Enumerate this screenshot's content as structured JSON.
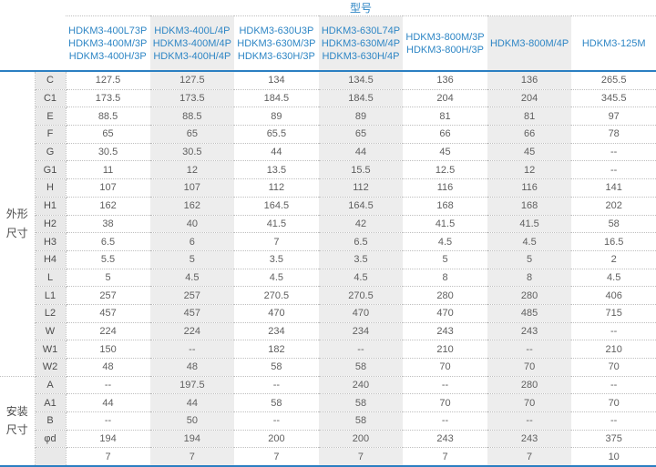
{
  "colors": {
    "accent_text": "#2e86c5",
    "accent_line": "#2b7fc2",
    "stripe_gray": "#ededed",
    "label_bg": "#e9e9e9"
  },
  "header": {
    "model_label": "型号",
    "columns": [
      {
        "lines": [
          "HDKM3-400L73P",
          "HDKM3-400M/3P",
          "HDKM3-400H/3P"
        ]
      },
      {
        "lines": [
          "HDKM3-400L/4P",
          "HDKM3-400M/4P",
          "HDKM3-400H/4P"
        ]
      },
      {
        "lines": [
          "HDKM3-630U3P",
          "HDKM3-630M/3P",
          "HDKM3-630H/3P"
        ]
      },
      {
        "lines": [
          "HDKM3-630L74P",
          "HDKM3-630M/4P",
          "HDKM3-630H/4P"
        ]
      },
      {
        "lines": [
          "HDKM3-800M/3P",
          "HDKM3-800H/3P"
        ]
      },
      {
        "lines": [
          "HDKM3-800M/4P"
        ]
      },
      {
        "lines": [
          "HDKM3-125M"
        ]
      }
    ]
  },
  "groups": [
    {
      "label": "外形尺寸",
      "rows": [
        {
          "label": "C",
          "values": [
            "127.5",
            "127.5",
            "134",
            "134.5",
            "136",
            "136",
            "265.5"
          ]
        },
        {
          "label": "C1",
          "values": [
            "173.5",
            "173.5",
            "184.5",
            "184.5",
            "204",
            "204",
            "345.5"
          ]
        },
        {
          "label": "E",
          "values": [
            "88.5",
            "88.5",
            "89",
            "89",
            "81",
            "81",
            "97"
          ]
        },
        {
          "label": "F",
          "values": [
            "65",
            "65",
            "65.5",
            "65",
            "66",
            "66",
            "78"
          ]
        },
        {
          "label": "G",
          "values": [
            "30.5",
            "30.5",
            "44",
            "44",
            "45",
            "45",
            "--"
          ]
        },
        {
          "label": "G1",
          "values": [
            "11",
            "12",
            "13.5",
            "15.5",
            "12.5",
            "12",
            "--"
          ]
        },
        {
          "label": "H",
          "values": [
            "107",
            "107",
            "112",
            "112",
            "116",
            "116",
            "141"
          ]
        },
        {
          "label": "H1",
          "values": [
            "162",
            "162",
            "164.5",
            "164.5",
            "168",
            "168",
            "202"
          ]
        },
        {
          "label": "H2",
          "values": [
            "38",
            "40",
            "41.5",
            "42",
            "41.5",
            "41.5",
            "58"
          ]
        },
        {
          "label": "H3",
          "values": [
            "6.5",
            "6",
            "7",
            "6.5",
            "4.5",
            "4.5",
            "16.5"
          ]
        },
        {
          "label": "H4",
          "values": [
            "5.5",
            "5",
            "3.5",
            "3.5",
            "5",
            "5",
            "2"
          ]
        },
        {
          "label": "L",
          "values": [
            "5",
            "4.5",
            "4.5",
            "4.5",
            "8",
            "8",
            "4.5"
          ]
        },
        {
          "label": "L1",
          "values": [
            "257",
            "257",
            "270.5",
            "270.5",
            "280",
            "280",
            "406"
          ]
        },
        {
          "label": "L2",
          "values": [
            "457",
            "457",
            "470",
            "470",
            "470",
            "485",
            "715"
          ]
        },
        {
          "label": "W",
          "values": [
            "224",
            "224",
            "234",
            "234",
            "243",
            "243",
            "--"
          ]
        },
        {
          "label": "W1",
          "values": [
            "150",
            "--",
            "182",
            "--",
            "210",
            "--",
            "210"
          ]
        },
        {
          "label": "W2",
          "values": [
            "48",
            "48",
            "58",
            "58",
            "70",
            "70",
            "70"
          ]
        }
      ]
    },
    {
      "label": "安装尺寸",
      "rows": [
        {
          "label": "A",
          "values": [
            "--",
            "197.5",
            "--",
            "240",
            "--",
            "280",
            "--"
          ]
        },
        {
          "label": "A1",
          "values": [
            "44",
            "44",
            "58",
            "58",
            "70",
            "70",
            "70"
          ]
        },
        {
          "label": "B",
          "values": [
            "--",
            "50",
            "--",
            "58",
            "--",
            "--",
            "--"
          ]
        },
        {
          "label": "φd",
          "values": [
            "194",
            "194",
            "200",
            "200",
            "243",
            "243",
            "375"
          ]
        },
        {
          "label": "",
          "values": [
            "7",
            "7",
            "7",
            "7",
            "7",
            "7",
            "10"
          ]
        }
      ]
    }
  ]
}
